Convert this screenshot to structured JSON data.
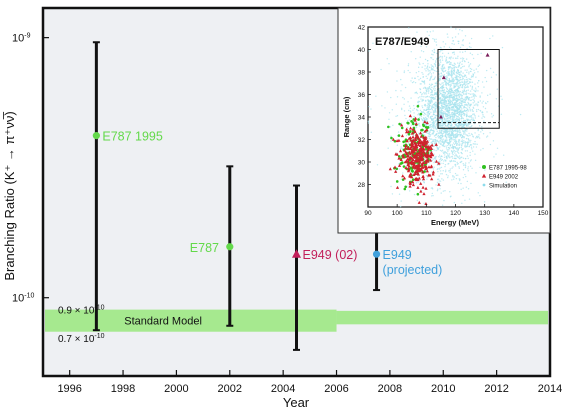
{
  "chart_data": [
    {
      "type": "scatter",
      "title": "",
      "xlabel": "Year",
      "ylabel": "Branching Ratio (K⁺ → π⁺νν̅)",
      "xlim": [
        1995,
        2014
      ],
      "ylim": [
        5e-11,
        1.3e-09
      ],
      "yscale": "log",
      "grid": false,
      "x_ticks": [
        1996,
        1998,
        2000,
        2002,
        2004,
        2006,
        2008,
        2010,
        2012,
        2014
      ],
      "y_tick_labels": [
        {
          "value": 1e-09,
          "label": "10",
          "exp": "-9"
        },
        {
          "value": 1e-10,
          "label": "10",
          "exp": "-10"
        }
      ],
      "y_annotations": [
        {
          "value": 9e-11,
          "text": "0.9 × 10",
          "exp": "-10"
        },
        {
          "value": 7e-11,
          "text": "0.7 × 10",
          "exp": "-10"
        }
      ],
      "band": {
        "label": "Standard Model",
        "color": "#a6e98f",
        "segments": [
          {
            "x": [
              1995,
              2006
            ],
            "y": [
              7.4e-11,
              9e-11
            ]
          },
          {
            "x": [
              2006,
              2014
            ],
            "y": [
              7.9e-11,
              8.9e-11
            ]
          }
        ]
      },
      "series": [
        {
          "name": "E787 1995",
          "label_lines": [
            "E787 1995"
          ],
          "color": "#63d94a",
          "marker": "circle",
          "x": 1997,
          "y": 4.2e-10,
          "y_low": 7.5e-11,
          "y_high": 9.6e-10
        },
        {
          "name": "E787",
          "label_lines": [
            "E787"
          ],
          "color": "#63d94a",
          "marker": "circle",
          "x": 2002,
          "y": 1.57e-10,
          "y_low": 7.8e-11,
          "y_high": 3.2e-10
        },
        {
          "name": "E949 (02)",
          "label_lines": [
            "E949 (02)"
          ],
          "color": "#c21f5a",
          "marker": "triangle",
          "x": 2004.5,
          "y": 1.47e-10,
          "y_low": 6.3e-11,
          "y_high": 2.7e-10
        },
        {
          "name": "E949 (projected)",
          "label_lines": [
            "E949",
            "(projected)"
          ],
          "color": "#3fa0dc",
          "marker": "circle",
          "x": 2007.5,
          "y": 1.47e-10,
          "y_low": 1.07e-10,
          "y_high": 1.9e-10
        }
      ]
    },
    {
      "type": "scatter",
      "title": "E787/E949",
      "xlabel": "Energy (MeV)",
      "ylabel": "Range (cm)",
      "xlim": [
        90,
        150
      ],
      "ylim": [
        26,
        42
      ],
      "x_ticks": [
        90,
        100,
        110,
        120,
        130,
        140,
        150
      ],
      "y_ticks": [
        28,
        30,
        32,
        34,
        36,
        38,
        40,
        42
      ],
      "signal_box": {
        "x": [
          114,
          135
        ],
        "y": [
          33,
          40
        ]
      },
      "signal_box_dashed": {
        "x": [
          114,
          135
        ],
        "y": [
          33,
          33.5
        ]
      },
      "legend_position": "lower-right",
      "legend": [
        {
          "label": "E787 1995-98",
          "color": "#2fc01f",
          "marker": "circle"
        },
        {
          "label": "E949 2002",
          "color": "#d0202d",
          "marker": "triangle"
        },
        {
          "label": "Simulation",
          "color": "#8ddcec",
          "marker": "dot"
        }
      ],
      "clusters": [
        {
          "name": "Simulation",
          "color": "#a7e3ee",
          "center": [
            118,
            34.5
          ],
          "spread": [
            5,
            2.6
          ],
          "n": 2400
        },
        {
          "name": "Simulation (halo)",
          "color": "#a7e3ee",
          "center": [
            112,
            33.5
          ],
          "spread": [
            10,
            4
          ],
          "n": 500
        },
        {
          "name": "E787 1995-98",
          "color": "#2fc01f",
          "center": [
            106,
            30.8
          ],
          "spread": [
            3,
            1.4
          ],
          "n": 160
        },
        {
          "name": "E949 2002",
          "color": "#d0202d",
          "center": [
            107,
            30.5
          ],
          "spread": [
            2.8,
            1.2
          ],
          "n": 300
        }
      ],
      "candidates": [
        {
          "x": 131,
          "y": 39.5,
          "color": "#7a1e5a"
        },
        {
          "x": 116,
          "y": 37.5,
          "color": "#7a1e5a"
        },
        {
          "x": 115,
          "y": 34.0,
          "color": "#7a1e5a"
        }
      ]
    }
  ]
}
